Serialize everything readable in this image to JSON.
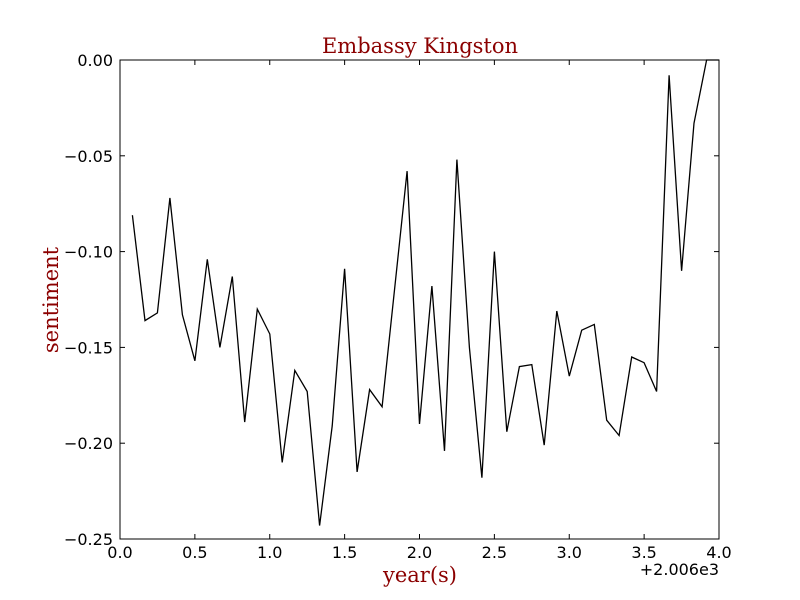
{
  "chart_data": {
    "type": "line",
    "title": "Embassy Kingston",
    "xlabel": "year(s)",
    "ylabel": "sentiment",
    "x_offset_label": "+2.006e3",
    "xlim": [
      0.0,
      4.0
    ],
    "ylim": [
      -0.25,
      0.0
    ],
    "xticks": [
      "0.0",
      "0.5",
      "1.0",
      "1.5",
      "2.0",
      "2.5",
      "3.0",
      "3.5",
      "4.0"
    ],
    "yticks": [
      "0.00",
      "−0.05",
      "−0.10",
      "−0.15",
      "−0.20",
      "−0.25"
    ],
    "grid": false,
    "colors": {
      "line": "#000000",
      "label": "#8b0000",
      "axes": "#000000"
    },
    "series": [
      {
        "x": [
          0.083,
          0.167,
          0.25,
          0.333,
          0.417,
          0.5,
          0.583,
          0.667,
          0.75,
          0.833,
          0.917,
          1.0,
          1.083,
          1.167,
          1.25,
          1.333,
          1.417,
          1.5,
          1.583,
          1.667,
          1.75,
          1.833,
          1.917,
          2.0,
          2.083,
          2.167,
          2.25,
          2.333,
          2.417,
          2.5,
          2.583,
          2.667,
          2.75,
          2.833,
          2.917,
          3.0,
          3.083,
          3.167,
          3.25,
          3.333,
          3.417,
          3.5,
          3.583,
          3.667,
          3.75,
          3.833,
          3.917,
          4.0
        ],
        "y": [
          -0.081,
          -0.136,
          -0.132,
          -0.072,
          -0.133,
          -0.157,
          -0.104,
          -0.15,
          -0.113,
          -0.189,
          -0.13,
          -0.143,
          -0.21,
          -0.162,
          -0.173,
          -0.243,
          -0.191,
          -0.109,
          -0.215,
          -0.172,
          -0.181,
          -0.12,
          -0.058,
          -0.19,
          -0.118,
          -0.204,
          -0.052,
          -0.15,
          -0.218,
          -0.1,
          -0.194,
          -0.16,
          -0.159,
          -0.201,
          -0.131,
          -0.165,
          -0.141,
          -0.138,
          -0.188,
          -0.196,
          -0.155,
          -0.158,
          -0.173,
          -0.008,
          -0.11,
          -0.033,
          0.0,
          0.0
        ]
      }
    ]
  }
}
